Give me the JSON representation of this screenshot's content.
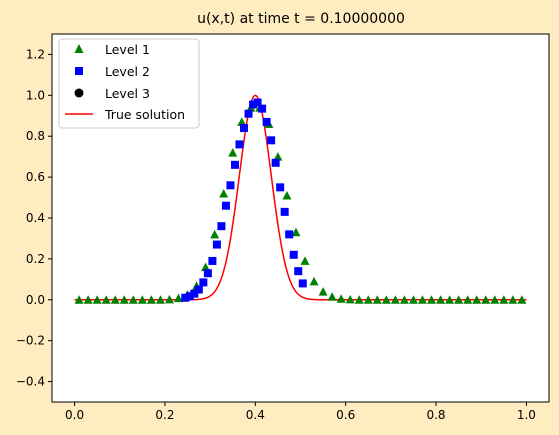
{
  "chart_data": {
    "type": "scatter",
    "title": "u(x,t) at time t =      0.10000000",
    "xlabel": "",
    "ylabel": "",
    "xlim": [
      -0.05,
      1.05
    ],
    "ylim": [
      -0.5,
      1.3
    ],
    "xticks": [
      "0.0",
      "0.2",
      "0.4",
      "0.6",
      "0.8",
      "1.0"
    ],
    "yticks": [
      "−0.4",
      "−0.2",
      "0.0",
      "0.2",
      "0.4",
      "0.6",
      "0.8",
      "1.0",
      "1.2"
    ],
    "legend_position": "upper-left",
    "grid": false,
    "series": [
      {
        "name": "Level 1",
        "marker": "triangle",
        "color": "#008000",
        "x": [
          0.01,
          0.03,
          0.05,
          0.07,
          0.09,
          0.11,
          0.13,
          0.15,
          0.17,
          0.19,
          0.21,
          0.23,
          0.25,
          0.27,
          0.29,
          0.31,
          0.33,
          0.35,
          0.37,
          0.39,
          0.41,
          0.43,
          0.45,
          0.47,
          0.49,
          0.51,
          0.53,
          0.55,
          0.57,
          0.59,
          0.61,
          0.63,
          0.65,
          0.67,
          0.69,
          0.71,
          0.73,
          0.75,
          0.77,
          0.79,
          0.81,
          0.83,
          0.85,
          0.87,
          0.89,
          0.91,
          0.93,
          0.95,
          0.97,
          0.99
        ],
        "y": [
          0,
          0,
          0,
          0,
          0,
          0,
          0,
          0,
          0,
          0,
          0.002,
          0.008,
          0.025,
          0.068,
          0.16,
          0.32,
          0.52,
          0.72,
          0.87,
          0.94,
          0.94,
          0.86,
          0.7,
          0.51,
          0.33,
          0.19,
          0.09,
          0.04,
          0.015,
          0.005,
          0.002,
          0,
          0,
          0,
          0,
          0,
          0,
          0,
          0,
          0,
          0,
          0,
          0,
          0,
          0,
          0,
          0,
          0,
          0,
          0
        ]
      },
      {
        "name": "Level 2",
        "marker": "square",
        "color": "#0000ff",
        "x": [
          0.245,
          0.255,
          0.265,
          0.275,
          0.285,
          0.295,
          0.305,
          0.315,
          0.325,
          0.335,
          0.345,
          0.355,
          0.365,
          0.375,
          0.385,
          0.395,
          0.405,
          0.415,
          0.425,
          0.435,
          0.445,
          0.455,
          0.465,
          0.475,
          0.485,
          0.495,
          0.505
        ],
        "y": [
          0.01,
          0.017,
          0.03,
          0.05,
          0.085,
          0.13,
          0.19,
          0.27,
          0.36,
          0.46,
          0.56,
          0.66,
          0.76,
          0.84,
          0.91,
          0.955,
          0.965,
          0.935,
          0.87,
          0.78,
          0.67,
          0.55,
          0.43,
          0.32,
          0.22,
          0.14,
          0.08
        ]
      },
      {
        "name": "Level 3",
        "marker": "circle",
        "color": "#000000",
        "x": [],
        "y": []
      },
      {
        "name": "True solution",
        "marker": "line",
        "color": "#ff0000",
        "function": "exp(-((x-0.4)/0.05)^2)"
      }
    ]
  }
}
